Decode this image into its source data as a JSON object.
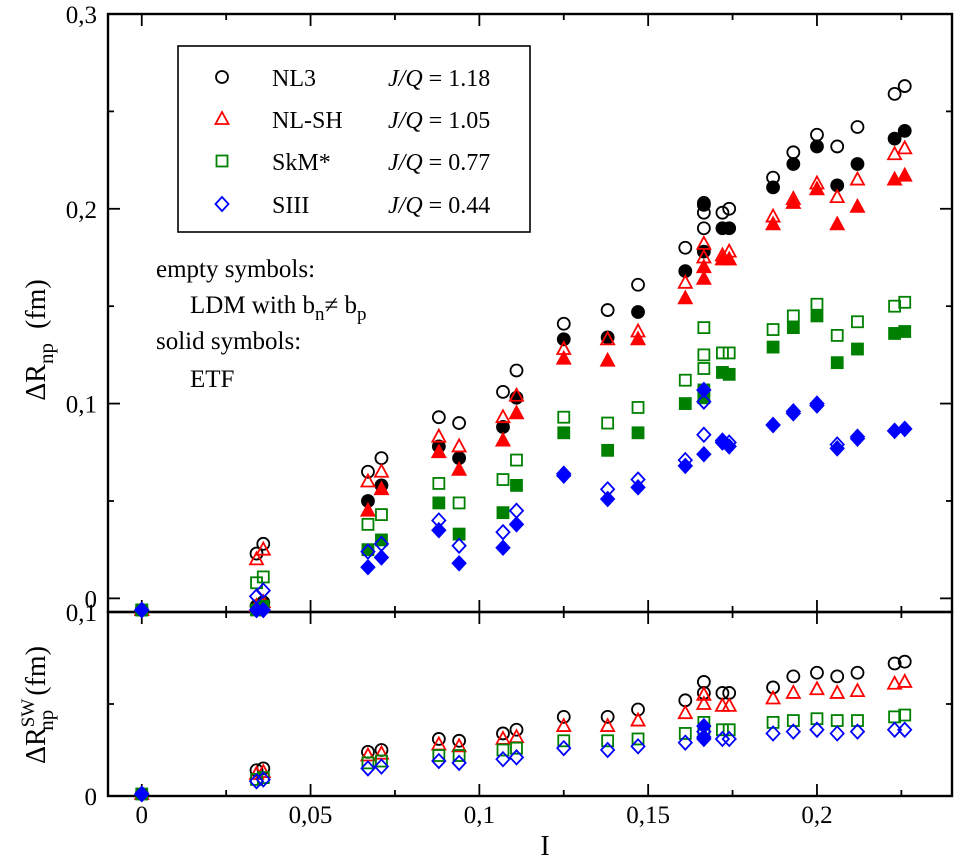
{
  "chart_data": [
    {
      "type": "scatter",
      "panel": "top",
      "ylabel": "ΔR",
      "ylabel_sub": "np",
      "ylabel_unit": "(fm)",
      "ylim": [
        -0.007,
        0.3
      ],
      "xlim": [
        -0.01,
        0.24
      ],
      "grid": false,
      "ytick_labels": [
        {
          "value": 0,
          "label": "0"
        },
        {
          "value": 0.1,
          "label": "0,1"
        },
        {
          "value": 0.2,
          "label": "0,2"
        },
        {
          "value": 0.3,
          "label": "0,3"
        }
      ],
      "legend": {
        "placement": "top-left",
        "entries": [
          {
            "name": "NL3",
            "ratio": "J/Q = 1.18",
            "ratio_label": "J/Q",
            "ratio_value": "= 1.18",
            "marker": "circle",
            "color": "#000000"
          },
          {
            "name": "NL-SH",
            "ratio": "J/Q = 1.05",
            "ratio_label": "J/Q",
            "ratio_value": "= 1.05",
            "marker": "triangle",
            "color": "#ff0000"
          },
          {
            "name": "SkM*",
            "ratio": "J/Q = 0.77",
            "ratio_label": "J/Q",
            "ratio_value": "= 0.77",
            "marker": "square",
            "color": "#008000"
          },
          {
            "name": "SIII",
            "ratio": "J/Q = 0.44",
            "ratio_label": "J/Q",
            "ratio_value": "= 0.44",
            "marker": "diamond",
            "color": "#0000ff"
          }
        ]
      },
      "annotations": {
        "empty_title": "empty symbols:",
        "empty_desc": "LDM with b",
        "empty_sub_n": "n",
        "empty_neq": "≠ b",
        "empty_sub_p": "p",
        "solid_title": "solid symbols:",
        "solid_desc": "ETF"
      },
      "series": [
        {
          "name": "NL3 empty",
          "marker": "circle",
          "filled": false,
          "color": "#000000",
          "x": [
            0,
            0.034,
            0.036,
            0.067,
            0.071,
            0.088,
            0.094,
            0.107,
            0.111,
            0.125,
            0.138,
            0.147,
            0.161,
            0.1665,
            0.1665,
            0.1665,
            0.172,
            0.174,
            0.187,
            0.193,
            0.2,
            0.206,
            0.212,
            0.223,
            0.226
          ],
          "y": [
            -0.015,
            0.023,
            0.028,
            0.065,
            0.072,
            0.093,
            0.09,
            0.106,
            0.117,
            0.141,
            0.148,
            0.161,
            0.18,
            0.203,
            0.198,
            0.19,
            0.198,
            0.2,
            0.216,
            0.229,
            0.238,
            0.232,
            0.242,
            0.259,
            0.263
          ]
        },
        {
          "name": "NL3 solid",
          "marker": "circle",
          "filled": true,
          "color": "#000000",
          "x": [
            0,
            0.034,
            0.036,
            0.067,
            0.071,
            0.088,
            0.094,
            0.107,
            0.111,
            0.125,
            0.138,
            0.147,
            0.161,
            0.1665,
            0.1665,
            0.172,
            0.174,
            0.187,
            0.193,
            0.2,
            0.206,
            0.212,
            0.223,
            0.226
          ],
          "y": [
            -0.015,
            -0.004,
            -0.002,
            0.05,
            0.058,
            0.078,
            0.072,
            0.088,
            0.103,
            0.133,
            0.134,
            0.147,
            0.168,
            0.202,
            0.178,
            0.19,
            0.19,
            0.211,
            0.223,
            0.232,
            0.212,
            0.223,
            0.236,
            0.24
          ]
        },
        {
          "name": "NL-SH empty",
          "marker": "triangle",
          "filled": false,
          "color": "#ff0000",
          "x": [
            0,
            0.034,
            0.036,
            0.067,
            0.071,
            0.088,
            0.094,
            0.107,
            0.111,
            0.125,
            0.138,
            0.147,
            0.161,
            0.1665,
            0.1665,
            0.172,
            0.174,
            0.187,
            0.193,
            0.2,
            0.206,
            0.212,
            0.223,
            0.226
          ],
          "y": [
            -0.015,
            0.02,
            0.025,
            0.06,
            0.065,
            0.083,
            0.078,
            0.093,
            0.104,
            0.128,
            0.133,
            0.137,
            0.162,
            0.182,
            0.175,
            0.176,
            0.178,
            0.196,
            0.205,
            0.213,
            0.206,
            0.215,
            0.228,
            0.231
          ]
        },
        {
          "name": "NL-SH solid",
          "marker": "triangle",
          "filled": true,
          "color": "#ff0000",
          "x": [
            0,
            0.034,
            0.036,
            0.067,
            0.071,
            0.088,
            0.094,
            0.107,
            0.111,
            0.125,
            0.138,
            0.147,
            0.161,
            0.1665,
            0.1665,
            0.172,
            0.174,
            0.187,
            0.193,
            0.2,
            0.206,
            0.212,
            0.223,
            0.226
          ],
          "y": [
            -0.015,
            -0.004,
            -0.002,
            0.045,
            0.056,
            0.075,
            0.066,
            0.081,
            0.095,
            0.123,
            0.122,
            0.133,
            0.154,
            0.17,
            0.164,
            0.174,
            0.174,
            0.192,
            0.203,
            0.21,
            0.192,
            0.201,
            0.215,
            0.217
          ]
        },
        {
          "name": "SkM* empty",
          "marker": "square",
          "filled": false,
          "color": "#008000",
          "x": [
            0,
            0.034,
            0.036,
            0.067,
            0.071,
            0.088,
            0.094,
            0.107,
            0.111,
            0.125,
            0.138,
            0.147,
            0.161,
            0.1665,
            0.1665,
            0.1665,
            0.172,
            0.174,
            0.187,
            0.193,
            0.2,
            0.206,
            0.212,
            0.223,
            0.226
          ],
          "y": [
            -0.015,
            0.008,
            0.011,
            0.038,
            0.043,
            0.059,
            0.049,
            0.061,
            0.071,
            0.093,
            0.09,
            0.098,
            0.112,
            0.139,
            0.125,
            0.118,
            0.126,
            0.126,
            0.138,
            0.145,
            0.151,
            0.135,
            0.142,
            0.15,
            0.152
          ]
        },
        {
          "name": "SkM* solid",
          "marker": "square",
          "filled": true,
          "color": "#008000",
          "x": [
            0,
            0.034,
            0.036,
            0.067,
            0.071,
            0.088,
            0.094,
            0.107,
            0.111,
            0.125,
            0.138,
            0.147,
            0.161,
            0.1665,
            0.1665,
            0.172,
            0.174,
            0.187,
            0.193,
            0.2,
            0.206,
            0.212,
            0.223,
            0.226
          ],
          "y": [
            -0.015,
            -0.007,
            -0.004,
            0.025,
            0.03,
            0.049,
            0.033,
            0.044,
            0.058,
            0.085,
            0.076,
            0.085,
            0.1,
            0.107,
            0.103,
            0.116,
            0.115,
            0.129,
            0.139,
            0.145,
            0.121,
            0.128,
            0.136,
            0.137
          ]
        },
        {
          "name": "SIII empty",
          "marker": "diamond",
          "filled": false,
          "color": "#0000ff",
          "x": [
            0,
            0.034,
            0.036,
            0.067,
            0.071,
            0.088,
            0.094,
            0.107,
            0.111,
            0.125,
            0.138,
            0.147,
            0.161,
            0.1665,
            0.1665,
            0.172,
            0.174,
            0.187,
            0.193,
            0.2,
            0.206,
            0.212,
            0.223,
            0.226
          ],
          "y": [
            -0.015,
            0.001,
            0.004,
            0.024,
            0.028,
            0.04,
            0.027,
            0.034,
            0.045,
            0.064,
            0.056,
            0.061,
            0.071,
            0.084,
            0.101,
            0.081,
            0.08,
            0.089,
            0.096,
            0.1,
            0.079,
            0.083,
            0.086,
            0.087
          ]
        },
        {
          "name": "SIII solid",
          "marker": "diamond",
          "filled": true,
          "color": "#0000ff",
          "x": [
            0,
            0.034,
            0.036,
            0.067,
            0.071,
            0.088,
            0.094,
            0.107,
            0.111,
            0.125,
            0.138,
            0.147,
            0.161,
            0.1665,
            0.1665,
            0.172,
            0.174,
            0.187,
            0.193,
            0.2,
            0.206,
            0.212,
            0.223,
            0.226
          ],
          "y": [
            -0.015,
            -0.009,
            -0.007,
            0.016,
            0.021,
            0.035,
            0.018,
            0.026,
            0.038,
            0.063,
            0.051,
            0.057,
            0.068,
            0.074,
            0.107,
            0.08,
            0.078,
            0.089,
            0.095,
            0.099,
            0.077,
            0.082,
            0.086,
            0.087
          ]
        }
      ]
    },
    {
      "type": "scatter",
      "panel": "bottom",
      "xlabel": "I",
      "ylabel": "ΔR",
      "ylabel_sub": "np",
      "ylabel_sup": "SW",
      "ylabel_unit": "(fm)",
      "ylim": [
        0,
        0.1
      ],
      "xlim": [
        -0.01,
        0.24
      ],
      "grid": false,
      "ytick_labels": [
        {
          "value": 0,
          "label": "0"
        },
        {
          "value": 0.1,
          "label": "0,1"
        }
      ],
      "xtick_labels": [
        {
          "value": 0,
          "label": "0"
        },
        {
          "value": 0.05,
          "label": "0,05"
        },
        {
          "value": 0.1,
          "label": "0,1"
        },
        {
          "value": 0.15,
          "label": "0,15"
        },
        {
          "value": 0.2,
          "label": "0,2"
        }
      ],
      "series": [
        {
          "name": "NL3",
          "marker": "circle",
          "filled": false,
          "color": "#000000",
          "x": [
            0,
            0.034,
            0.036,
            0.067,
            0.071,
            0.088,
            0.094,
            0.107,
            0.111,
            0.125,
            0.138,
            0.147,
            0.161,
            0.1665,
            0.1665,
            0.172,
            0.174,
            0.187,
            0.193,
            0.2,
            0.206,
            0.212,
            0.223,
            0.226
          ],
          "y": [
            0.001,
            0.014,
            0.015,
            0.024,
            0.025,
            0.031,
            0.03,
            0.034,
            0.036,
            0.043,
            0.043,
            0.047,
            0.052,
            0.062,
            0.056,
            0.056,
            0.056,
            0.059,
            0.065,
            0.067,
            0.065,
            0.067,
            0.072,
            0.073
          ]
        },
        {
          "name": "NL-SH",
          "marker": "triangle",
          "filled": false,
          "color": "#ff0000",
          "x": [
            0,
            0.034,
            0.036,
            0.067,
            0.071,
            0.088,
            0.094,
            0.107,
            0.111,
            0.125,
            0.138,
            0.147,
            0.161,
            0.1665,
            0.1665,
            0.172,
            0.174,
            0.187,
            0.193,
            0.2,
            0.206,
            0.212,
            0.223,
            0.226
          ],
          "y": [
            0.001,
            0.012,
            0.013,
            0.022,
            0.023,
            0.028,
            0.027,
            0.031,
            0.032,
            0.038,
            0.038,
            0.041,
            0.045,
            0.055,
            0.05,
            0.049,
            0.049,
            0.053,
            0.056,
            0.058,
            0.056,
            0.057,
            0.061,
            0.062
          ]
        },
        {
          "name": "SkM*",
          "marker": "square",
          "filled": false,
          "color": "#008000",
          "x": [
            0,
            0.034,
            0.036,
            0.067,
            0.071,
            0.088,
            0.094,
            0.107,
            0.111,
            0.125,
            0.138,
            0.147,
            0.161,
            0.1665,
            0.1665,
            0.172,
            0.174,
            0.187,
            0.193,
            0.2,
            0.206,
            0.212,
            0.223,
            0.226
          ],
          "y": [
            0.001,
            0.009,
            0.01,
            0.018,
            0.019,
            0.022,
            0.022,
            0.025,
            0.026,
            0.03,
            0.03,
            0.031,
            0.034,
            0.04,
            0.036,
            0.036,
            0.036,
            0.04,
            0.041,
            0.042,
            0.041,
            0.041,
            0.043,
            0.044
          ]
        },
        {
          "name": "SIII",
          "marker": "diamond",
          "filled": false,
          "color": "#0000ff",
          "x": [
            0,
            0.034,
            0.036,
            0.067,
            0.071,
            0.088,
            0.094,
            0.107,
            0.111,
            0.125,
            0.138,
            0.147,
            0.161,
            0.1665,
            0.1665,
            0.172,
            0.174,
            0.187,
            0.193,
            0.2,
            0.206,
            0.212,
            0.223,
            0.226
          ],
          "y": [
            0.001,
            0.008,
            0.009,
            0.015,
            0.016,
            0.019,
            0.018,
            0.02,
            0.021,
            0.026,
            0.025,
            0.027,
            0.029,
            0.035,
            0.032,
            0.031,
            0.031,
            0.034,
            0.035,
            0.036,
            0.034,
            0.035,
            0.036,
            0.036
          ]
        },
        {
          "name": "SIII solid",
          "marker": "diamond",
          "filled": true,
          "color": "#0000ff",
          "x": [
            0,
            0.1665,
            0.1665
          ],
          "y": [
            0.001,
            0.038,
            0.031
          ]
        }
      ]
    }
  ]
}
